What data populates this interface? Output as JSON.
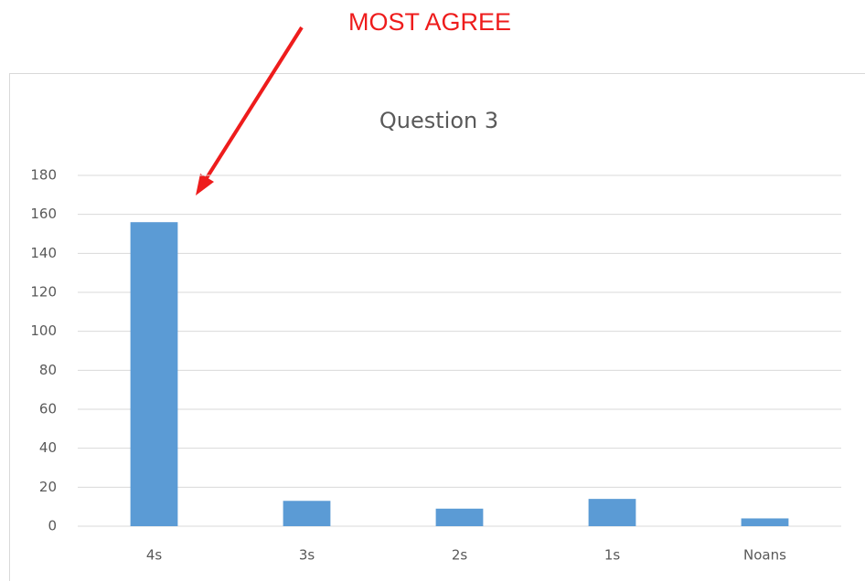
{
  "chart_data": {
    "type": "bar",
    "title": "Question 3",
    "annotation": "MOST AGREE",
    "categories": [
      "4s",
      "3s",
      "2s",
      "1s",
      "Noans"
    ],
    "values": [
      156,
      13,
      9,
      14,
      4
    ],
    "color": "#5b9bd5",
    "ylim": [
      0,
      180
    ],
    "yticks": [
      0,
      20,
      40,
      60,
      80,
      100,
      120,
      140,
      160,
      180
    ],
    "grid": true
  }
}
